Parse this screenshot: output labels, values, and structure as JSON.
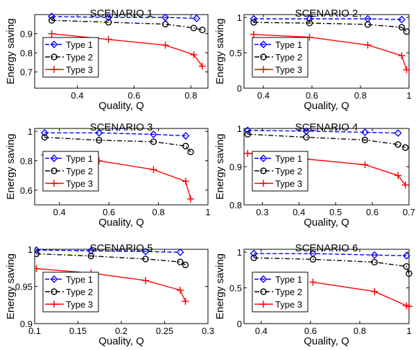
{
  "chart_data": [
    {
      "type": "line",
      "title": "SCENARIO 1",
      "xlabel": "Quality, Q",
      "ylabel": "Energy saving",
      "xlim": [
        0.25,
        0.86
      ],
      "ylim": [
        0.615,
        1.0
      ],
      "xticks": [
        0.4,
        0.6,
        0.8
      ],
      "xtick_labels": [
        "0.4",
        "0.6",
        "0.8"
      ],
      "yticks": [
        0.7,
        0.8,
        0.9
      ],
      "ytick_labels": [
        "0.7",
        "0.8",
        "0.9"
      ],
      "legend": "left",
      "series": [
        {
          "name": "Type 1",
          "x": [
            0.31,
            0.51,
            0.71,
            0.82
          ],
          "y": [
            0.99,
            0.985,
            0.985,
            0.98
          ]
        },
        {
          "name": "Type 2",
          "x": [
            0.31,
            0.51,
            0.71,
            0.81,
            0.84
          ],
          "y": [
            0.97,
            0.96,
            0.95,
            0.93,
            0.92
          ]
        },
        {
          "name": "Type 3",
          "x": [
            0.31,
            0.51,
            0.71,
            0.81,
            0.84
          ],
          "y": [
            0.9,
            0.87,
            0.84,
            0.79,
            0.73
          ]
        }
      ]
    },
    {
      "type": "line",
      "title": "SCENARIO 2",
      "xlabel": "Quality, Q",
      "ylabel": "Energy saving",
      "xlim": [
        0.32,
        1.0
      ],
      "ylim": [
        0.0,
        1.04
      ],
      "xticks": [
        0.4,
        0.6,
        0.8,
        1.0
      ],
      "xtick_labels": [
        "0.4",
        "0.6",
        "0.8",
        "1"
      ],
      "yticks": [
        0,
        0.5,
        1.0
      ],
      "ytick_labels": [
        "0",
        "0.5",
        "1"
      ],
      "legend": "left",
      "series": [
        {
          "name": "Type 1",
          "x": [
            0.36,
            0.59,
            0.83,
            0.97
          ],
          "y": [
            0.98,
            0.98,
            0.98,
            0.97
          ]
        },
        {
          "name": "Type 2",
          "x": [
            0.36,
            0.59,
            0.83,
            0.97,
            0.99
          ],
          "y": [
            0.93,
            0.92,
            0.9,
            0.86,
            0.8
          ]
        },
        {
          "name": "Type 3",
          "x": [
            0.36,
            0.59,
            0.83,
            0.97,
            0.99
          ],
          "y": [
            0.76,
            0.72,
            0.61,
            0.46,
            0.26
          ]
        }
      ]
    },
    {
      "type": "line",
      "title": "SCENARIO 3",
      "xlabel": "Quality, Q",
      "ylabel": "Energy saving",
      "xlim": [
        0.3,
        1.0
      ],
      "ylim": [
        0.5,
        1.02
      ],
      "xticks": [
        0.4,
        0.6,
        0.8,
        1.0
      ],
      "xtick_labels": [
        "0.4",
        "0.6",
        "0.8",
        "1"
      ],
      "yticks": [
        0.6,
        0.8,
        1.0
      ],
      "ytick_labels": [
        "0.6",
        "0.8",
        "1"
      ],
      "legend": "left",
      "series": [
        {
          "name": "Type 1",
          "x": [
            0.34,
            0.56,
            0.78,
            0.91
          ],
          "y": [
            0.99,
            0.99,
            0.98,
            0.97
          ]
        },
        {
          "name": "Type 2",
          "x": [
            0.34,
            0.56,
            0.78,
            0.91,
            0.93
          ],
          "y": [
            0.96,
            0.94,
            0.93,
            0.9,
            0.86
          ]
        },
        {
          "name": "Type 3",
          "x": [
            0.34,
            0.56,
            0.78,
            0.91,
            0.93
          ],
          "y": [
            0.84,
            0.8,
            0.74,
            0.66,
            0.54
          ]
        }
      ]
    },
    {
      "type": "line",
      "title": "SCENARIO 4",
      "xlabel": "Quality, Q",
      "ylabel": "Energy saving",
      "xlim": [
        0.25,
        0.7
      ],
      "ylim": [
        0.8,
        1.0
      ],
      "xticks": [
        0.3,
        0.4,
        0.5,
        0.6,
        0.7
      ],
      "xtick_labels": [
        "0.3",
        "0.4",
        "0.5",
        "0.6",
        "0.7"
      ],
      "yticks": [
        0.8,
        0.9,
        1.0
      ],
      "ytick_labels": [
        "0.8",
        "0.9",
        "1"
      ],
      "legend": "left",
      "series": [
        {
          "name": "Type 1",
          "x": [
            0.26,
            0.42,
            0.58,
            0.67
          ],
          "y": [
            0.995,
            0.993,
            0.99,
            0.988
          ]
        },
        {
          "name": "Type 2",
          "x": [
            0.26,
            0.42,
            0.58,
            0.67,
            0.69
          ],
          "y": [
            0.985,
            0.977,
            0.97,
            0.958,
            0.95
          ]
        },
        {
          "name": "Type 3",
          "x": [
            0.26,
            0.42,
            0.58,
            0.67,
            0.69
          ],
          "y": [
            0.935,
            0.92,
            0.905,
            0.877,
            0.852
          ]
        }
      ]
    },
    {
      "type": "line",
      "title": "SCENARIO 5",
      "xlabel": "Quality, Q",
      "ylabel": "Energy saving",
      "xlim": [
        0.1,
        0.3
      ],
      "ylim": [
        0.9,
        1.0
      ],
      "xticks": [
        0.1,
        0.15,
        0.2,
        0.25,
        0.3
      ],
      "xtick_labels": [
        "0.1",
        "0.15",
        "0.2",
        "0.25",
        "0.3"
      ],
      "yticks": [
        0.9,
        0.95,
        1.0
      ],
      "ytick_labels": [
        "0.9",
        "0.95",
        "1"
      ],
      "legend": "left",
      "series": [
        {
          "name": "Type 1",
          "x": [
            0.102,
            0.165,
            0.228,
            0.268
          ],
          "y": [
            0.999,
            0.998,
            0.997,
            0.996
          ]
        },
        {
          "name": "Type 2",
          "x": [
            0.102,
            0.165,
            0.228,
            0.268,
            0.274
          ],
          "y": [
            0.994,
            0.991,
            0.987,
            0.983,
            0.979
          ]
        },
        {
          "name": "Type 3",
          "x": [
            0.102,
            0.165,
            0.228,
            0.268,
            0.274
          ],
          "y": [
            0.974,
            0.968,
            0.958,
            0.945,
            0.93
          ]
        }
      ]
    },
    {
      "type": "line",
      "title": "SCENARIO 6",
      "xlabel": "Quality, Q",
      "ylabel": "Energy saving",
      "xlim": [
        0.33,
        1.0
      ],
      "ylim": [
        0.0,
        1.04
      ],
      "xticks": [
        0.4,
        0.6,
        0.8,
        1.0
      ],
      "xtick_labels": [
        "0.4",
        "0.6",
        "0.8",
        "1"
      ],
      "yticks": [
        0,
        0.5,
        1.0
      ],
      "ytick_labels": [
        "0",
        "0.5",
        "1"
      ],
      "legend": "left",
      "series": [
        {
          "name": "Type 1",
          "x": [
            0.37,
            0.61,
            0.86,
            0.99
          ],
          "y": [
            0.98,
            0.98,
            0.96,
            0.95
          ]
        },
        {
          "name": "Type 2",
          "x": [
            0.37,
            0.61,
            0.86,
            0.99,
            1.0
          ],
          "y": [
            0.92,
            0.9,
            0.86,
            0.8,
            0.7
          ]
        },
        {
          "name": "Type 3",
          "x": [
            0.61,
            0.86,
            0.99,
            1.0
          ],
          "y": [
            0.58,
            0.45,
            0.25,
            0.24
          ]
        }
      ]
    }
  ],
  "style": {
    "series_colors": [
      "#0000ff",
      "#000000",
      "#ff0000"
    ],
    "series_dash": [
      "dashed",
      "dash-dot",
      "solid"
    ],
    "series_markers": [
      "diamond",
      "circle",
      "plus"
    ]
  }
}
